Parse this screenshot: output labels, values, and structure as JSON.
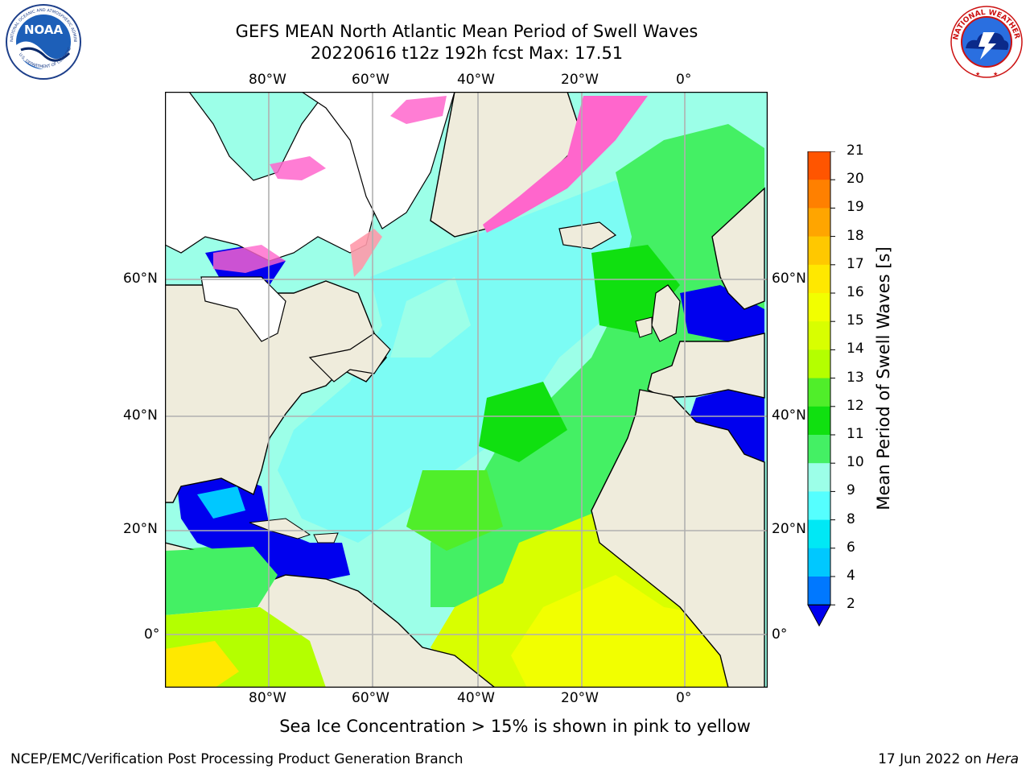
{
  "header": {
    "title_line1": "GEFS MEAN North Atlantic Mean Period of Swell Waves",
    "title_line2": "20220616 t12z 192h fcst   Max: 17.51"
  },
  "logos": {
    "left": {
      "name": "NOAA",
      "text": "NOAA",
      "ring_text": "NATIONAL OCEANIC AND ATMOSPHERIC ADMINISTRATION · U.S. DEPARTMENT OF COMMERCE"
    },
    "right": {
      "name": "National Weather Service",
      "ring_text": "NATIONAL WEATHER SERVICE"
    }
  },
  "map": {
    "lon_top_labels": [
      "80°W",
      "60°W",
      "40°W",
      "20°W",
      "0°"
    ],
    "lon_bottom_labels": [
      "80°W",
      "60°W",
      "40°W",
      "20°W",
      "0°"
    ],
    "lat_left_labels": [
      "60°N",
      "40°N",
      "20°N",
      "0°"
    ],
    "lat_right_labels": [
      "60°N",
      "40°N",
      "20°N",
      "0°"
    ],
    "land_color": "#efecdc",
    "ice_color": "#ff66cc"
  },
  "colorbar": {
    "title": "Mean Period of Swell Waves [s]",
    "labels": [
      "21",
      "20",
      "19",
      "18",
      "17",
      "16",
      "15",
      "14",
      "13",
      "12",
      "11",
      "10",
      "9",
      "8",
      "6",
      "4",
      "2"
    ],
    "colors_top_to_bottom": [
      "#ff0000",
      "#ff2a00",
      "#ff5500",
      "#ff8000",
      "#ffa500",
      "#ffc800",
      "#ffe800",
      "#f2ff00",
      "#d8ff00",
      "#b4ff00",
      "#50ee2a",
      "#10e010",
      "#44f064",
      "#9cffe8",
      "#55ffff",
      "#00e8f5",
      "#00c8ff",
      "#0078ff"
    ],
    "under_color": "#0000ee"
  },
  "note": "Sea Ice Concentration > 15% is shown in pink to yellow",
  "footer": {
    "left": "NCEP/EMC/Verification Post Processing Product Generation Branch",
    "right_prefix": "17 Jun 2022 on ",
    "right_italic": "Hera"
  }
}
